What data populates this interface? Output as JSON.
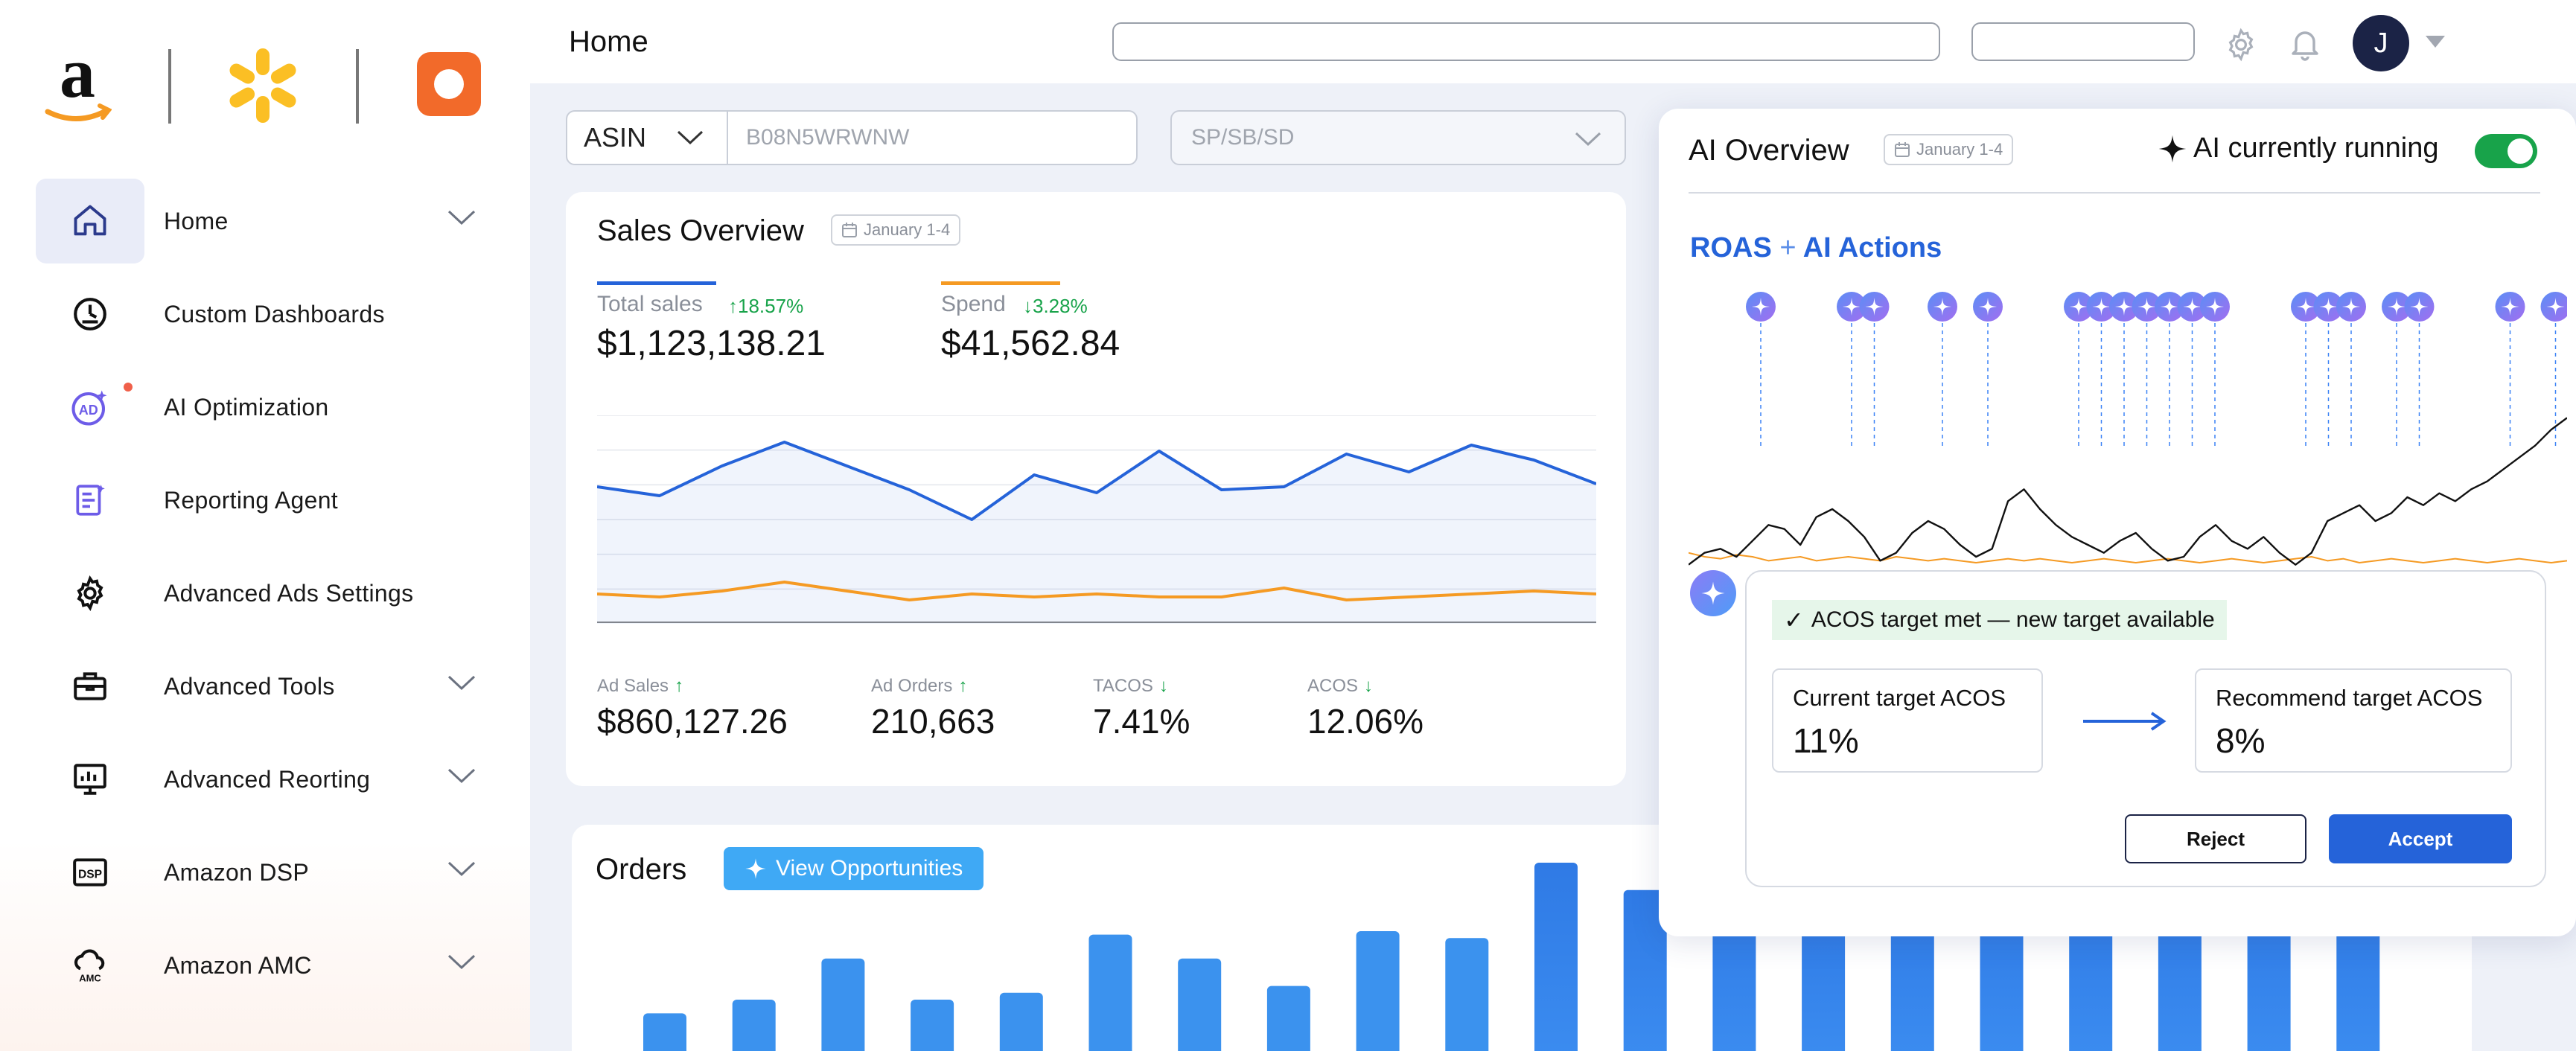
{
  "brands": {
    "amazon": "Amazon",
    "walmart": "Walmart",
    "instacart": "Instacart"
  },
  "sidebar": {
    "items": [
      {
        "label": "Home",
        "icon": "home-icon",
        "chevron": true,
        "active": true
      },
      {
        "label": "Custom Dashboards",
        "icon": "dashboard-gauge-icon",
        "chevron": false
      },
      {
        "label": "AI Optimization",
        "icon": "ai-ad-icon",
        "chevron": false,
        "dot": true
      },
      {
        "label": "Reporting Agent",
        "icon": "report-document-icon",
        "chevron": false
      },
      {
        "label": "Advanced Ads Settings",
        "icon": "gear-icon",
        "chevron": false
      },
      {
        "label": "Advanced Tools",
        "icon": "toolbox-icon",
        "chevron": true
      },
      {
        "label": "Advanced Reorting",
        "icon": "monitor-chart-icon",
        "chevron": true
      },
      {
        "label": "Amazon DSP",
        "icon": "dsp-icon",
        "chevron": true,
        "icon_text": "DSP"
      },
      {
        "label": "Amazon AMC",
        "icon": "amc-cloud-icon",
        "chevron": true,
        "icon_text": "AMC"
      }
    ]
  },
  "header": {
    "title": "Home",
    "avatar_initial": "J"
  },
  "filters": {
    "type_select": "ASIN",
    "asin_placeholder": "B08N5WRWNW",
    "ad_type_placeholder": "SP/SB/SD"
  },
  "sales_overview": {
    "title": "Sales Overview",
    "date": "January 1-4",
    "total_sales": {
      "label": "Total sales",
      "change": "18.57%",
      "value": "$1,123,138.21",
      "color": "#2563d9"
    },
    "spend": {
      "label": "Spend",
      "change": "3.28%",
      "value": "$41,562.84",
      "color": "#f59a23"
    },
    "metrics": [
      {
        "label": "Ad Sales",
        "arrow": "up",
        "value": "$860,127.26"
      },
      {
        "label": "Ad Orders",
        "arrow": "up",
        "value": "210,663"
      },
      {
        "label": "TACOS",
        "arrow": "down",
        "value": "7.41%"
      },
      {
        "label": "ACOS",
        "arrow": "down",
        "value": "12.06%"
      }
    ]
  },
  "orders": {
    "title": "Orders",
    "opportunities_button": "View Opportunities"
  },
  "ai_overview": {
    "title": "AI Overview",
    "date": "January 1-4",
    "status_label": "AI currently running",
    "toggle_on": true,
    "chart_title_a": "ROAS",
    "chart_title_plus": "+",
    "chart_title_b": "AI Actions",
    "suggestion": {
      "badge": "ACOS target met — new target available",
      "current_label": "Current target ACOS",
      "current_value": "11%",
      "recommended_label": "Recommend target ACOS",
      "recommended_value": "8%",
      "reject_label": "Reject",
      "accept_label": "Accept"
    }
  },
  "colors": {
    "accent_blue": "#2563d9",
    "orange": "#f59a23",
    "green": "#18a34a",
    "sky": "#3fa9f5"
  },
  "chart_data": [
    {
      "type": "line",
      "x": [
        0,
        1,
        2,
        3,
        4,
        5,
        6,
        7,
        8,
        9,
        10,
        11,
        12,
        13,
        14,
        15,
        16
      ],
      "series": [
        {
          "name": "Total sales",
          "values": [
            46,
            43,
            53,
            61,
            53,
            45,
            35,
            50,
            44,
            58,
            45,
            46,
            57,
            51,
            60,
            55,
            47
          ]
        },
        {
          "name": "Spend",
          "values": [
            10,
            9,
            11,
            14,
            11,
            8,
            10,
            9,
            10,
            9,
            9,
            12,
            8,
            9,
            10,
            11,
            10
          ]
        }
      ],
      "ylim": [
        0,
        70
      ],
      "grid": true,
      "chart_id": "sales-overview"
    },
    {
      "type": "line",
      "chart_id": "roas-ai-actions",
      "series": [
        {
          "name": "ROAS",
          "values": [
            8,
            14,
            16,
            12,
            20,
            28,
            26,
            18,
            32,
            36,
            30,
            22,
            10,
            14,
            24,
            30,
            26,
            18,
            12,
            16,
            40,
            46,
            36,
            28,
            22,
            18,
            14,
            20,
            24,
            16,
            10,
            12,
            22,
            28,
            20,
            16,
            22,
            14,
            8,
            14,
            30,
            34,
            38,
            30,
            34,
            42,
            38,
            44,
            40,
            46,
            50,
            56,
            62,
            68,
            76,
            82
          ]
        },
        {
          "name": "ACOS",
          "values": [
            14,
            12,
            11,
            13,
            12,
            10,
            11,
            12,
            10,
            11,
            12,
            11,
            10,
            12,
            11,
            10,
            11,
            10,
            9,
            10,
            11,
            10,
            11,
            10,
            9,
            10,
            11,
            10,
            9,
            10,
            11,
            10,
            9,
            10,
            11,
            10,
            9,
            10,
            11,
            12,
            10,
            11,
            9,
            10,
            11,
            10,
            9,
            10,
            11,
            10,
            9,
            10,
            11,
            10,
            9,
            10
          ]
        }
      ],
      "ai_action_positions": [
        2,
        6,
        7,
        10,
        12,
        16,
        17,
        18,
        19,
        20,
        21,
        22,
        26,
        27,
        28,
        30,
        31,
        35,
        37
      ],
      "ylim": [
        0,
        90
      ]
    },
    {
      "type": "bar",
      "chart_id": "orders",
      "values": [
        22,
        30,
        54,
        30,
        34,
        68,
        54,
        38,
        70,
        66,
        110,
        94,
        94,
        86,
        94,
        94,
        94,
        94,
        94,
        94
      ],
      "ylim": [
        0,
        120
      ]
    }
  ]
}
